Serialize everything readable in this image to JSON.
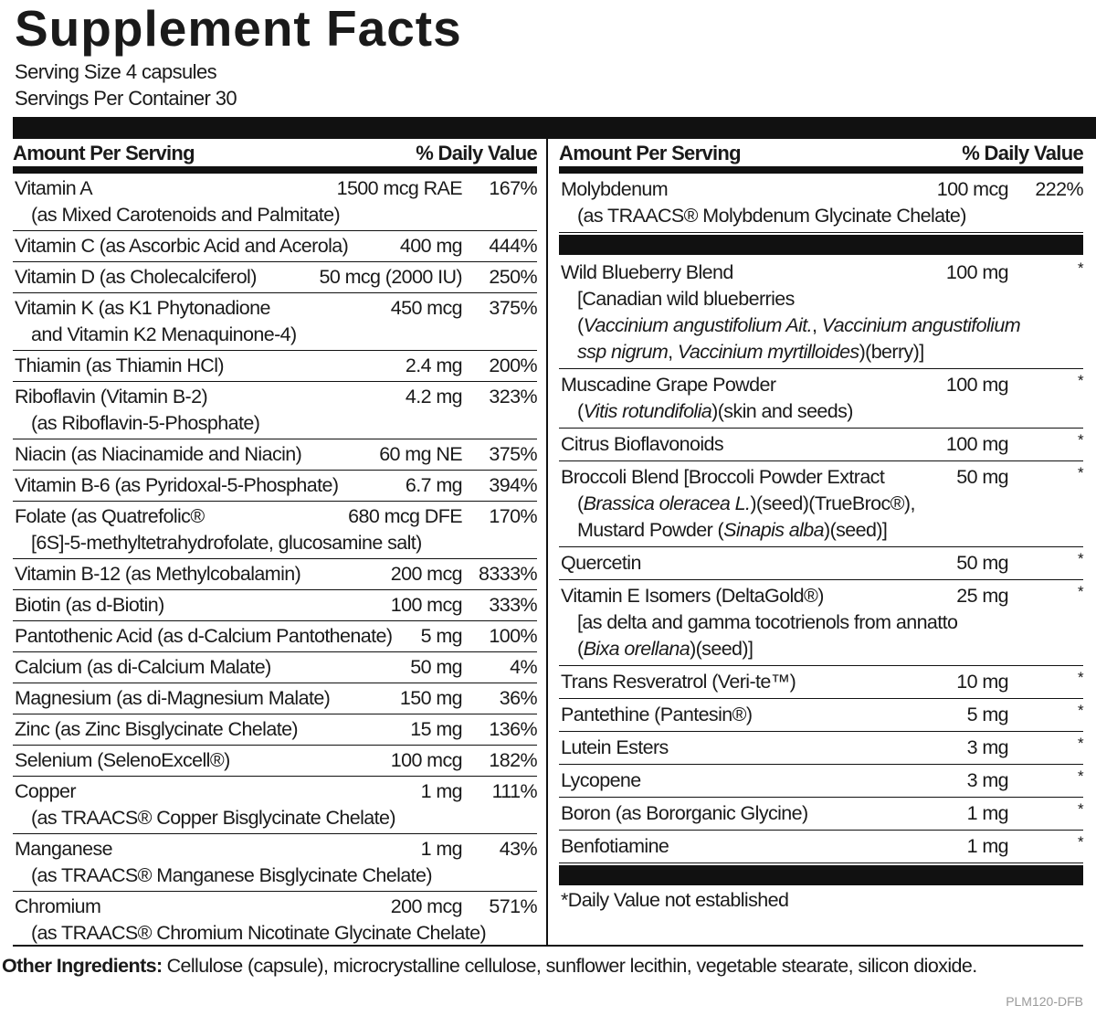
{
  "title": "Supplement Facts",
  "serving_size": "Serving Size 4 capsules",
  "servings_per_container": "Servings Per Container 30",
  "left_table": {
    "amount_header": "Amount Per Serving",
    "dv_header": "% Daily Value",
    "sections": [
      [
        {
          "name": [
            "Vitamin A",
            "(as Mixed Carotenoids and Palmitate)"
          ],
          "amount": "1500 mcg RAE",
          "dv": "167%"
        },
        {
          "name": [
            "Vitamin C (as Ascorbic Acid and Acerola)"
          ],
          "amount": "400 mg",
          "dv": "444%"
        },
        {
          "name": [
            "Vitamin D (as Cholecalciferol)"
          ],
          "amount": "50 mcg (2000 IU)",
          "dv": "250%"
        },
        {
          "name": [
            "Vitamin K (as K1 Phytonadione",
            "and Vitamin K2 Menaquinone-4)"
          ],
          "amount": "450 mcg",
          "dv": "375%"
        },
        {
          "name": [
            "Thiamin (as Thiamin HCl)"
          ],
          "amount": "2.4 mg",
          "dv": "200%"
        },
        {
          "name": [
            "Riboflavin (Vitamin B-2)",
            "(as Riboflavin-5-Phosphate)"
          ],
          "amount": "4.2 mg",
          "dv": "323%"
        },
        {
          "name": [
            "Niacin (as Niacinamide and Niacin)"
          ],
          "amount": "60 mg NE",
          "dv": "375%"
        },
        {
          "name": [
            "Vitamin B-6 (as Pyridoxal-5-Phosphate)"
          ],
          "amount": "6.7 mg",
          "dv": "394%"
        },
        {
          "name": [
            "Folate (as Quatrefolic®",
            "[6S]-5-methyltetrahydrofolate, glucosamine salt)"
          ],
          "amount": "680 mcg DFE",
          "dv": "170%"
        },
        {
          "name": [
            "Vitamin B-12 (as Methylcobalamin)"
          ],
          "amount": "200 mcg",
          "dv": "8333%"
        },
        {
          "name": [
            "Biotin (as d-Biotin)"
          ],
          "amount": "100 mcg",
          "dv": "333%"
        },
        {
          "name": [
            "Pantothenic Acid (as d-Calcium Pantothenate)"
          ],
          "amount": "5 mg",
          "dv": "100%"
        },
        {
          "name": [
            "Calcium (as di-Calcium Malate)"
          ],
          "amount": "50 mg",
          "dv": "4%"
        },
        {
          "name": [
            "Magnesium (as di-Magnesium Malate)"
          ],
          "amount": "150 mg",
          "dv": "36%"
        },
        {
          "name": [
            "Zinc (as Zinc Bisglycinate Chelate)"
          ],
          "amount": "15 mg",
          "dv": "136%"
        },
        {
          "name": [
            "Selenium (SelenoExcell®)"
          ],
          "amount": "100 mcg",
          "dv": "182%"
        },
        {
          "name": [
            "Copper",
            "(as TRAACS® Copper Bisglycinate Chelate)"
          ],
          "amount": "1 mg",
          "dv": "111%"
        },
        {
          "name": [
            "Manganese",
            "(as TRAACS® Manganese Bisglycinate Chelate)"
          ],
          "amount": "1 mg",
          "dv": "43%"
        },
        {
          "name": [
            "Chromium",
            "(as TRAACS® Chromium Nicotinate Glycinate Chelate)"
          ],
          "amount": "200 mcg",
          "dv": "571%"
        }
      ]
    ]
  },
  "right_table": {
    "amount_header": "Amount Per Serving",
    "dv_header": "% Daily Value",
    "sections": [
      [
        {
          "name": [
            "Molybdenum",
            "(as TRAACS® Molybdenum Glycinate Chelate)"
          ],
          "amount": "100 mcg",
          "dv": "222%"
        }
      ],
      [
        {
          "name": [
            "Wild Blueberry Blend",
            "[Canadian wild blueberries",
            [
              "(",
              {
                "italic": "Vaccinium angustifolium Ait."
              },
              ", ",
              {
                "italic": "Vaccinium angustifolium"
              }
            ],
            [
              {
                "italic": "ssp nigrum"
              },
              ", ",
              {
                "italic": "Vaccinium myrtilloides"
              },
              ")(berry)]"
            ]
          ],
          "amount": "100 mg",
          "dv": "*"
        },
        {
          "name": [
            "Muscadine Grape Powder",
            [
              "(",
              {
                "italic": "Vitis rotundifolia"
              },
              ")(skin and seeds)"
            ]
          ],
          "amount": "100 mg",
          "dv": "*"
        },
        {
          "name": [
            "Citrus Bioflavonoids"
          ],
          "amount": "100 mg",
          "dv": "*"
        },
        {
          "name": [
            "Broccoli Blend [Broccoli Powder Extract",
            [
              "(",
              {
                "italic": "Brassica oleracea L."
              },
              ")(seed)(TrueBroc®),"
            ],
            [
              "Mustard Powder (",
              {
                "italic": "Sinapis alba"
              },
              ")(seed)]"
            ]
          ],
          "amount": "50 mg",
          "dv": "*"
        },
        {
          "name": [
            "Quercetin"
          ],
          "amount": "50 mg",
          "dv": "*"
        },
        {
          "name": [
            "Vitamin E Isomers (DeltaGold®)",
            "[as delta and gamma tocotrienols from annatto",
            [
              "(",
              {
                "italic": "Bixa orellana"
              },
              ")(seed)]"
            ]
          ],
          "amount": "25 mg",
          "dv": "*"
        },
        {
          "name": [
            "Trans Resveratrol (Veri-te™)"
          ],
          "amount": "10 mg",
          "dv": "*"
        },
        {
          "name": [
            "Pantethine (Pantesin®)"
          ],
          "amount": "5 mg",
          "dv": "*"
        },
        {
          "name": [
            "Lutein Esters"
          ],
          "amount": "3 mg",
          "dv": "*"
        },
        {
          "name": [
            "Lycopene"
          ],
          "amount": "3 mg",
          "dv": "*"
        },
        {
          "name": [
            "Boron (as Bororganic Glycine)"
          ],
          "amount": "1 mg",
          "dv": "*"
        },
        {
          "name": [
            "Benfotiamine"
          ],
          "amount": "1 mg",
          "dv": "*"
        }
      ]
    ],
    "footnote": "*Daily Value not established"
  },
  "other_ingredients": {
    "label": "Other Ingredients:",
    "text": "Cellulose (capsule), microcrystalline cellulose, sunflower lecithin, vegetable stearate, silicon dioxide."
  },
  "code": "PLM120-DFB"
}
